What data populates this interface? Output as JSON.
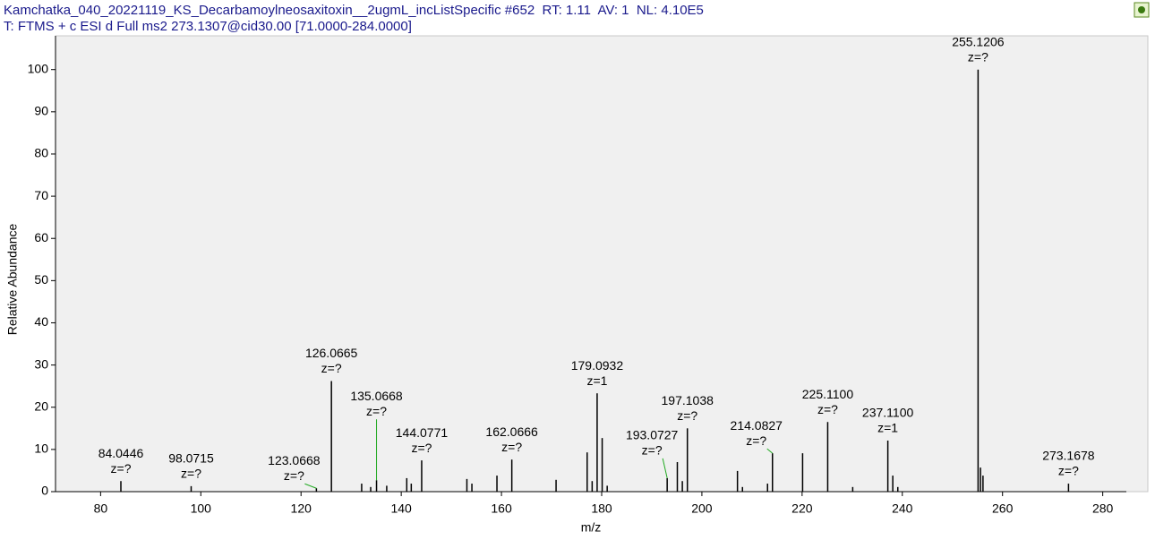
{
  "header": {
    "line1": "Kamchatka_040_20221119_KS_Decarbamoylneosaxitoxin__2ugmL_incListSpecific #652  RT: 1.11  AV: 1  NL: 4.10E5",
    "line2": "T: FTMS + c ESI d Full ms2 273.1307@cid30.00 [71.0000-284.0000]"
  },
  "chart_data": {
    "type": "bar",
    "xlabel": "m/z",
    "ylabel": "Relative Abundance",
    "x": [
      84.0446,
      98.0715,
      123.0668,
      126.0665,
      132.1,
      133.9,
      135.0668,
      137.1,
      141.1,
      142.0,
      144.0771,
      153.1,
      154.1,
      159.1,
      162.0666,
      170.9,
      177.1,
      178.1,
      179.0932,
      180.1,
      181.1,
      193.0727,
      195.1,
      196.1,
      197.1038,
      207.1,
      208.1,
      213.1,
      214.0827,
      220.1,
      225.11,
      230.1,
      237.11,
      238.1,
      239.1,
      255.1206,
      255.6,
      256.1,
      273.1678
    ],
    "x_labels": [
      "84.0446",
      "98.0715",
      "123.0668",
      "126.0665",
      null,
      null,
      "135.0668",
      null,
      null,
      null,
      "144.0771",
      null,
      null,
      null,
      "162.0666",
      null,
      null,
      null,
      "179.0932",
      null,
      null,
      "193.0727",
      null,
      null,
      "197.1038",
      null,
      null,
      null,
      "214.0827",
      null,
      "225.1100",
      null,
      "237.1100",
      null,
      null,
      "255.1206",
      null,
      null,
      "273.1678"
    ],
    "values": [
      2.5,
      1.3,
      0.8,
      26.2,
      1.9,
      1.1,
      2.7,
      1.4,
      3.2,
      1.9,
      7.4,
      3.0,
      1.9,
      3.8,
      7.6,
      2.8,
      9.3,
      2.5,
      23.3,
      12.7,
      1.4,
      3.2,
      7.0,
      2.5,
      15.0,
      4.9,
      1.1,
      1.9,
      9.1,
      9.1,
      16.5,
      1.1,
      12.1,
      3.8,
      1.1,
      100,
      5.7,
      3.8,
      1.9
    ],
    "charges": [
      "z=?",
      "z=?",
      "z=?",
      "z=?",
      null,
      null,
      "z=?",
      null,
      null,
      null,
      "z=?",
      null,
      null,
      null,
      "z=?",
      null,
      null,
      null,
      "z=1",
      null,
      null,
      "z=?",
      null,
      null,
      "z=?",
      null,
      null,
      null,
      "z=?",
      null,
      "z=?",
      null,
      "z=1",
      null,
      null,
      "z=?",
      null,
      null,
      "z=?"
    ],
    "color": "#000000",
    "xlim": [
      71,
      289
    ],
    "xticks": [
      80,
      100,
      120,
      140,
      160,
      180,
      200,
      220,
      240,
      260,
      280
    ],
    "ylim": [
      0,
      108
    ],
    "yticks": [
      0,
      10,
      20,
      30,
      40,
      50,
      60,
      70,
      80,
      90,
      100
    ],
    "grid": false
  }
}
